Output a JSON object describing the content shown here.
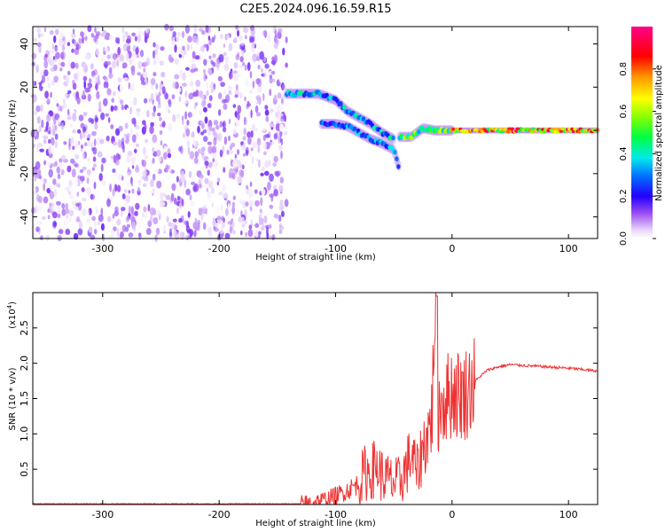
{
  "title": "C2E5.2024.096.16.59.R15",
  "chart_data": [
    {
      "type": "heatmap",
      "xlabel": "Height of straight line (km)",
      "ylabel": "Frequency (Hz)",
      "xlim": [
        -360,
        125
      ],
      "ylim": [
        -50,
        48
      ],
      "xticks": [
        -300,
        -200,
        -100,
        0,
        100
      ],
      "yticks": [
        -40,
        -20,
        0,
        20,
        40
      ],
      "colorbar": {
        "label": "Normalized spectral amplitude",
        "range": [
          0,
          1
        ],
        "ticks": [
          0.0,
          0.2,
          0.4,
          0.6,
          0.8
        ],
        "tick_labels": [
          "0.0",
          "0.2",
          "0.4",
          "0.6",
          "0.8"
        ],
        "colormap": "rainbow (white-lavender-violet-blue-cyan-green-yellow-orange-red-magenta)"
      },
      "noise_region": {
        "x": [
          -360,
          -142
        ],
        "y": [
          -50,
          48
        ],
        "amplitude": [
          0.0,
          0.15
        ]
      },
      "ridges": [
        {
          "name": "upper",
          "x": [
            -142,
            -130,
            -115,
            -100,
            -90,
            -80,
            -70,
            -60,
            -50
          ],
          "y": [
            17,
            17,
            17,
            14,
            9,
            6,
            3,
            -1,
            -4
          ],
          "amplitude": 0.35
        },
        {
          "name": "lower",
          "x": [
            -112,
            -100,
            -90,
            -80,
            -70,
            -60,
            -50,
            -45
          ],
          "y": [
            3,
            3,
            2,
            -1,
            -4,
            -6,
            -9,
            -18
          ],
          "amplitude": 0.3
        },
        {
          "name": "tail",
          "x": [
            -45,
            -35,
            -25,
            -15,
            -5,
            0
          ],
          "y": [
            -3,
            -3,
            1,
            0,
            0,
            0
          ],
          "amplitude": 0.5
        },
        {
          "name": "steady",
          "x": [
            0,
            125
          ],
          "y": [
            0,
            0
          ],
          "amplitude": 0.75
        }
      ]
    },
    {
      "type": "line",
      "xlabel": "Height of straight line (km)",
      "ylabel": "SNR (10 * v/v)",
      "multiplier_label": "(x10",
      "multiplier_exp": "4",
      "multiplier_close": ")",
      "xlim": [
        -360,
        125
      ],
      "ylim": [
        0,
        3.0
      ],
      "xticks": [
        -300,
        -200,
        -100,
        0,
        100
      ],
      "yticks": [
        0.5,
        1.0,
        1.5,
        2.0,
        2.5
      ],
      "ytick_labels": [
        "0.5",
        "1.0",
        "1.5",
        "2.0",
        "2.5"
      ],
      "color": "#ee3333",
      "series": [
        {
          "x": [
            -360,
            -300,
            -200,
            -130,
            -120,
            -110,
            -100,
            -90,
            -80,
            -75,
            -70,
            -65,
            -60,
            -55,
            -50,
            -45,
            -40,
            -35,
            -30,
            -25,
            -20,
            -17,
            -15,
            -13,
            -12,
            -10,
            -5,
            0,
            10,
            20,
            30,
            40,
            50,
            60,
            80,
            100,
            125
          ],
          "y": [
            0.01,
            0.01,
            0.01,
            0.01,
            0.03,
            0.06,
            0.12,
            0.2,
            0.3,
            0.45,
            0.45,
            0.55,
            0.4,
            0.35,
            0.3,
            0.32,
            0.5,
            0.7,
            0.45,
            0.8,
            1.05,
            1.3,
            2.9,
            2.5,
            1.3,
            1.45,
            1.5,
            1.6,
            1.55,
            1.75,
            1.9,
            1.95,
            1.98,
            1.97,
            1.95,
            1.93,
            1.89
          ]
        }
      ],
      "notable_peak": {
        "x": -13,
        "y": 2.95
      }
    }
  ]
}
